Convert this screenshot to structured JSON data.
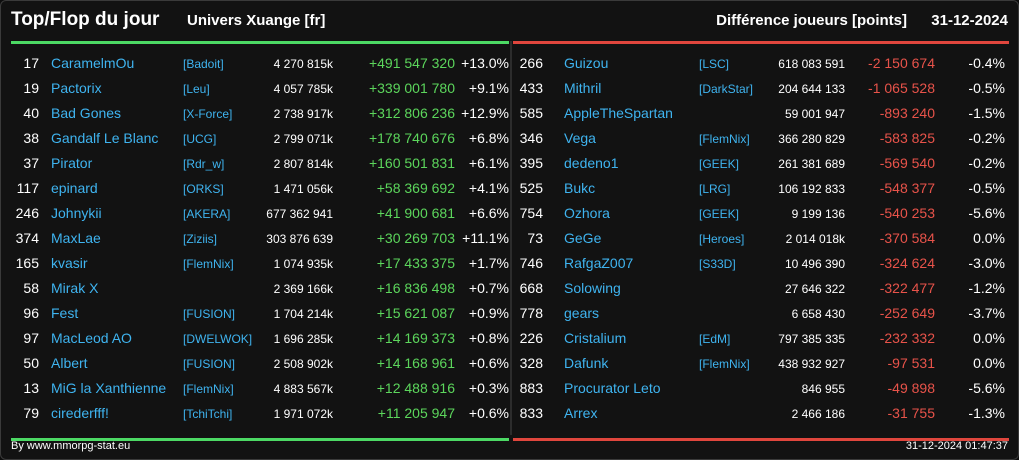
{
  "header": {
    "title": "Top/Flop du jour",
    "universe": "Univers Xuange [fr]",
    "diff_label": "Différence joueurs [points]",
    "date": "31-12-2024"
  },
  "colors": {
    "gain": "#5cd65c",
    "loss": "#e8534a",
    "name": "#3fb4f0"
  },
  "top": [
    {
      "rank": "17",
      "name": "CaramelmOu",
      "guild": "[Badoit]",
      "points": "4 270 815k",
      "delta": "+491 547 320",
      "pct": "+13.0%"
    },
    {
      "rank": "19",
      "name": "Pactorix",
      "guild": "[Leu]",
      "points": "4 057 785k",
      "delta": "+339 001 780",
      "pct": "+9.1%"
    },
    {
      "rank": "40",
      "name": "Bad Gones",
      "guild": "[X-Force]",
      "points": "2 738 917k",
      "delta": "+312 806 236",
      "pct": "+12.9%"
    },
    {
      "rank": "38",
      "name": "Gandalf Le Blanc",
      "guild": "[UCG]",
      "points": "2 799 071k",
      "delta": "+178 740 676",
      "pct": "+6.8%"
    },
    {
      "rank": "37",
      "name": "Pirator",
      "guild": "[Rdr_w]",
      "points": "2 807 814k",
      "delta": "+160 501 831",
      "pct": "+6.1%"
    },
    {
      "rank": "117",
      "name": "epinard",
      "guild": "[ORKS]",
      "points": "1 471 056k",
      "delta": "+58 369 692",
      "pct": "+4.1%"
    },
    {
      "rank": "246",
      "name": "Johnykii",
      "guild": "[AKERA]",
      "points": "677 362 941",
      "delta": "+41 900 681",
      "pct": "+6.6%"
    },
    {
      "rank": "374",
      "name": "MaxLae",
      "guild": "[Ziziis]",
      "points": "303 876 639",
      "delta": "+30 269 703",
      "pct": "+11.1%"
    },
    {
      "rank": "165",
      "name": "kvasir",
      "guild": "[FlemNix]",
      "points": "1 074 935k",
      "delta": "+17 433 375",
      "pct": "+1.7%"
    },
    {
      "rank": "58",
      "name": "Mirak X",
      "guild": "",
      "points": "2 369 166k",
      "delta": "+16 836 498",
      "pct": "+0.7%"
    },
    {
      "rank": "96",
      "name": "Fest",
      "guild": "[FUSION]",
      "points": "1 704 214k",
      "delta": "+15 621 087",
      "pct": "+0.9%"
    },
    {
      "rank": "97",
      "name": "MacLeod AO",
      "guild": "[DWELWOK]",
      "points": "1 696 285k",
      "delta": "+14 169 373",
      "pct": "+0.8%"
    },
    {
      "rank": "50",
      "name": "Albert",
      "guild": "[FUSION]",
      "points": "2 508 902k",
      "delta": "+14 168 961",
      "pct": "+0.6%"
    },
    {
      "rank": "13",
      "name": "MiG la Xanthienne",
      "guild": "[FlemNix]",
      "points": "4 883 567k",
      "delta": "+12 488 916",
      "pct": "+0.3%"
    },
    {
      "rank": "79",
      "name": "cirederfff!",
      "guild": "[TchiTchi]",
      "points": "1 971 072k",
      "delta": "+11 205 947",
      "pct": "+0.6%"
    }
  ],
  "flop": [
    {
      "rank": "266",
      "name": "Guizou",
      "guild": "[LSC]",
      "points": "618 083 591",
      "delta": "-2 150 674",
      "pct": "-0.4%"
    },
    {
      "rank": "433",
      "name": "Mithril",
      "guild": "[DarkStar]",
      "points": "204 644 133",
      "delta": "-1 065 528",
      "pct": "-0.5%"
    },
    {
      "rank": "585",
      "name": "AppleTheSpartan",
      "guild": "",
      "points": "59 001 947",
      "delta": "-893 240",
      "pct": "-1.5%"
    },
    {
      "rank": "346",
      "name": "Vega",
      "guild": "[FlemNix]",
      "points": "366 280 829",
      "delta": "-583 825",
      "pct": "-0.2%"
    },
    {
      "rank": "395",
      "name": "dedeno1",
      "guild": "[GEEK]",
      "points": "261 381 689",
      "delta": "-569 540",
      "pct": "-0.2%"
    },
    {
      "rank": "525",
      "name": "Bukc",
      "guild": "[LRG]",
      "points": "106 192 833",
      "delta": "-548 377",
      "pct": "-0.5%"
    },
    {
      "rank": "754",
      "name": "Ozhora",
      "guild": "[GEEK]",
      "points": "9 199 136",
      "delta": "-540 253",
      "pct": "-5.6%"
    },
    {
      "rank": "73",
      "name": "GeGe",
      "guild": "[Heroes]",
      "points": "2 014 018k",
      "delta": "-370 584",
      "pct": "0.0%"
    },
    {
      "rank": "746",
      "name": "RafgaZ007",
      "guild": "[S33D]",
      "points": "10 496 390",
      "delta": "-324 624",
      "pct": "-3.0%"
    },
    {
      "rank": "668",
      "name": "Solowing",
      "guild": "",
      "points": "27 646 322",
      "delta": "-322 477",
      "pct": "-1.2%"
    },
    {
      "rank": "778",
      "name": "gears",
      "guild": "",
      "points": "6 658 430",
      "delta": "-252 649",
      "pct": "-3.7%"
    },
    {
      "rank": "226",
      "name": "Cristalium",
      "guild": "[EdM]",
      "points": "797 385 335",
      "delta": "-232 332",
      "pct": "0.0%"
    },
    {
      "rank": "328",
      "name": "Dafunk",
      "guild": "[FlemNix]",
      "points": "438 932 927",
      "delta": "-97 531",
      "pct": "0.0%"
    },
    {
      "rank": "883",
      "name": "Procurator Leto",
      "guild": "",
      "points": "846 955",
      "delta": "-49 898",
      "pct": "-5.6%"
    },
    {
      "rank": "833",
      "name": "Arrex",
      "guild": "",
      "points": "2 466 186",
      "delta": "-31 755",
      "pct": "-1.3%"
    }
  ],
  "footer": {
    "source": "By www.mmorpg-stat.eu",
    "timestamp": "31-12-2024 01:47:37"
  }
}
